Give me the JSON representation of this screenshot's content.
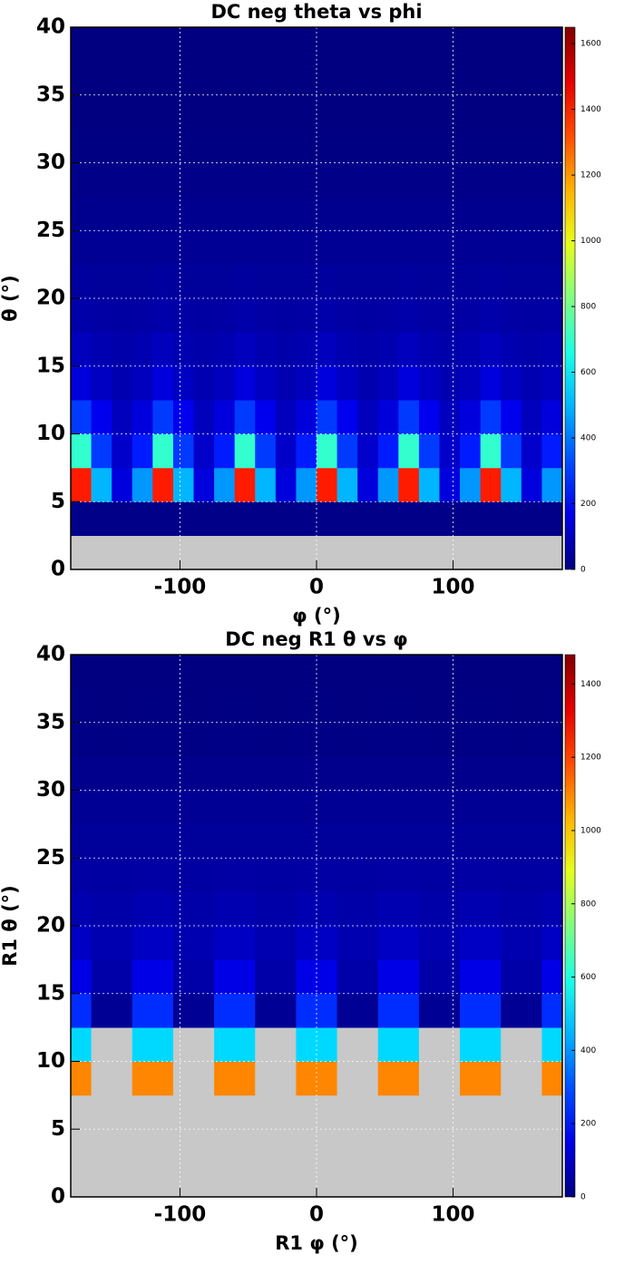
{
  "chart_data": [
    {
      "type": "heatmap",
      "title": "DC neg theta vs phi",
      "x_label": "φ (°)",
      "y_label": "θ (°)",
      "xlim": [
        -180,
        180
      ],
      "ylim": [
        0,
        40
      ],
      "zlim": [
        0,
        1650
      ],
      "xticks": [
        -100,
        0,
        100
      ],
      "yticks": [
        0,
        5,
        10,
        15,
        20,
        25,
        30,
        35,
        40
      ],
      "zticks": [
        0,
        200,
        400,
        600,
        800,
        1000,
        1200,
        1400,
        1600
      ],
      "xbins": [
        -180,
        -165,
        -150,
        -135,
        -120,
        -105,
        -90,
        -75,
        -60,
        -45,
        -30,
        -15,
        0,
        15,
        30,
        45,
        60,
        75,
        90,
        105,
        120,
        135,
        150,
        165,
        180
      ],
      "ybins": [
        0,
        2.5,
        5,
        7.5,
        10,
        12.5,
        15,
        17.5,
        20,
        22.5,
        25,
        27.5,
        30,
        32.5,
        35,
        37.5,
        40
      ],
      "grid": true,
      "empty_color": "#c8c8c8",
      "z": [
        [
          0,
          0,
          0,
          0,
          0,
          0,
          0,
          0,
          0,
          0,
          0,
          0,
          0,
          0,
          0,
          0,
          0,
          0,
          0,
          0,
          0,
          0,
          0,
          0
        ],
        [
          15,
          15,
          15,
          15,
          15,
          15,
          15,
          15,
          15,
          15,
          15,
          15,
          15,
          15,
          15,
          15,
          15,
          15,
          15,
          15,
          15,
          15,
          15,
          15
        ],
        [
          1400,
          500,
          150,
          450,
          1400,
          500,
          150,
          450,
          1400,
          500,
          150,
          450,
          1400,
          500,
          150,
          450,
          1400,
          500,
          150,
          450,
          1400,
          500,
          150,
          450
        ],
        [
          700,
          300,
          120,
          250,
          700,
          300,
          120,
          250,
          700,
          300,
          120,
          250,
          700,
          300,
          120,
          250,
          700,
          300,
          120,
          250,
          700,
          300,
          120,
          250
        ],
        [
          300,
          180,
          100,
          150,
          300,
          180,
          100,
          150,
          300,
          180,
          100,
          150,
          300,
          180,
          100,
          150,
          300,
          180,
          100,
          150,
          300,
          180,
          100,
          150
        ],
        [
          150,
          110,
          80,
          100,
          150,
          110,
          80,
          100,
          150,
          110,
          80,
          100,
          150,
          110,
          80,
          100,
          150,
          110,
          80,
          100,
          150,
          110,
          80,
          100
        ],
        [
          100,
          80,
          70,
          80,
          100,
          80,
          70,
          80,
          100,
          80,
          70,
          80,
          100,
          80,
          70,
          80,
          100,
          80,
          70,
          80,
          100,
          80,
          70,
          80
        ],
        [
          70,
          60,
          55,
          60,
          70,
          60,
          55,
          60,
          70,
          60,
          55,
          60,
          70,
          60,
          55,
          60,
          70,
          60,
          55,
          60,
          70,
          60,
          55,
          60
        ],
        [
          50,
          45,
          45,
          45,
          50,
          45,
          45,
          45,
          50,
          45,
          45,
          45,
          50,
          45,
          45,
          45,
          50,
          45,
          45,
          45,
          50,
          45,
          45,
          45
        ],
        [
          35,
          35,
          35,
          35,
          35,
          35,
          35,
          35,
          35,
          35,
          35,
          35,
          35,
          35,
          35,
          35,
          35,
          35,
          35,
          35,
          35,
          35,
          35,
          35
        ],
        [
          25,
          25,
          25,
          25,
          25,
          25,
          25,
          25,
          25,
          25,
          25,
          25,
          25,
          25,
          25,
          25,
          25,
          25,
          25,
          25,
          25,
          25,
          25,
          25
        ],
        [
          15,
          15,
          15,
          15,
          15,
          15,
          15,
          15,
          15,
          15,
          15,
          15,
          15,
          15,
          15,
          15,
          15,
          15,
          15,
          15,
          15,
          15,
          15,
          15
        ],
        [
          4,
          4,
          4,
          4,
          4,
          4,
          4,
          4,
          4,
          4,
          4,
          4,
          4,
          4,
          4,
          4,
          4,
          4,
          4,
          4,
          4,
          4,
          4,
          4
        ],
        [
          2,
          2,
          2,
          2,
          2,
          2,
          2,
          2,
          2,
          2,
          2,
          2,
          2,
          2,
          2,
          2,
          2,
          2,
          2,
          2,
          2,
          2,
          2,
          2
        ],
        [
          1,
          1,
          1,
          1,
          1,
          1,
          1,
          1,
          1,
          1,
          1,
          1,
          1,
          1,
          1,
          1,
          1,
          1,
          1,
          1,
          1,
          1,
          1,
          1
        ],
        [
          1,
          1,
          1,
          1,
          1,
          1,
          1,
          1,
          1,
          1,
          1,
          1,
          1,
          1,
          1,
          1,
          1,
          1,
          1,
          1,
          1,
          1,
          1,
          1
        ]
      ]
    },
    {
      "type": "heatmap",
      "title": "DC neg R1 θ vs φ",
      "x_label": "R1 φ (°)",
      "y_label": "R1 θ (°)",
      "xlim": [
        -180,
        180
      ],
      "ylim": [
        0,
        40
      ],
      "zlim": [
        0,
        1480
      ],
      "xticks": [
        -100,
        0,
        100
      ],
      "yticks": [
        0,
        5,
        10,
        15,
        20,
        25,
        30,
        35,
        40
      ],
      "zticks": [
        0,
        200,
        400,
        600,
        800,
        1000,
        1200,
        1400
      ],
      "xbins": [
        -180,
        -165,
        -150,
        -135,
        -120,
        -105,
        -90,
        -75,
        -60,
        -45,
        -30,
        -15,
        0,
        15,
        30,
        45,
        60,
        75,
        90,
        105,
        120,
        135,
        150,
        165,
        180
      ],
      "ybins": [
        0,
        2.5,
        5,
        7.5,
        10,
        12.5,
        15,
        17.5,
        20,
        22.5,
        25,
        27.5,
        30,
        32.5,
        35,
        37.5,
        40
      ],
      "grid": true,
      "empty_color": "#c8c8c8",
      "z": [
        [
          0,
          0,
          0,
          0,
          0,
          0,
          0,
          0,
          0,
          0,
          0,
          0,
          0,
          0,
          0,
          0,
          0,
          0,
          0,
          0,
          0,
          0,
          0,
          0
        ],
        [
          0,
          0,
          0,
          0,
          0,
          0,
          0,
          0,
          0,
          0,
          0,
          0,
          0,
          0,
          0,
          0,
          0,
          0,
          0,
          0,
          0,
          0,
          0,
          0
        ],
        [
          0,
          0,
          0,
          0,
          0,
          0,
          0,
          0,
          0,
          0,
          0,
          0,
          0,
          0,
          0,
          0,
          0,
          0,
          0,
          0,
          0,
          0,
          0,
          0
        ],
        [
          1100,
          0,
          0,
          1100,
          1100,
          0,
          0,
          1100,
          1100,
          0,
          0,
          1100,
          1100,
          0,
          0,
          1100,
          1100,
          0,
          0,
          1100,
          1100,
          0,
          0,
          1100
        ],
        [
          500,
          0,
          0,
          500,
          500,
          0,
          0,
          500,
          500,
          0,
          0,
          500,
          500,
          0,
          0,
          500,
          500,
          0,
          0,
          500,
          500,
          0,
          0,
          500
        ],
        [
          250,
          30,
          30,
          250,
          250,
          30,
          30,
          250,
          250,
          30,
          30,
          250,
          250,
          30,
          30,
          250,
          250,
          30,
          30,
          250,
          250,
          30,
          30,
          250
        ],
        [
          150,
          60,
          60,
          150,
          150,
          60,
          60,
          150,
          150,
          60,
          60,
          150,
          150,
          60,
          60,
          150,
          150,
          60,
          60,
          150,
          150,
          60,
          60,
          150
        ],
        [
          100,
          70,
          70,
          100,
          100,
          70,
          70,
          100,
          100,
          70,
          70,
          100,
          100,
          70,
          70,
          100,
          100,
          70,
          70,
          100,
          100,
          70,
          70,
          100
        ],
        [
          70,
          60,
          60,
          70,
          70,
          60,
          60,
          70,
          70,
          60,
          60,
          70,
          70,
          60,
          60,
          70,
          70,
          60,
          60,
          70,
          70,
          60,
          60,
          70
        ],
        [
          55,
          50,
          50,
          55,
          55,
          50,
          50,
          55,
          55,
          50,
          50,
          55,
          55,
          50,
          50,
          55,
          55,
          50,
          50,
          55,
          55,
          50,
          50,
          55
        ],
        [
          40,
          40,
          40,
          40,
          40,
          40,
          40,
          40,
          40,
          40,
          40,
          40,
          40,
          40,
          40,
          40,
          40,
          40,
          40,
          40,
          40,
          40,
          40,
          40
        ],
        [
          30,
          30,
          30,
          30,
          30,
          30,
          30,
          30,
          30,
          30,
          30,
          30,
          30,
          30,
          30,
          30,
          30,
          30,
          30,
          30,
          30,
          30,
          30,
          30
        ],
        [
          20,
          18,
          18,
          20,
          20,
          18,
          18,
          20,
          20,
          18,
          18,
          20,
          20,
          18,
          18,
          20,
          20,
          18,
          18,
          20,
          20,
          18,
          18,
          20
        ],
        [
          10,
          8,
          8,
          10,
          10,
          8,
          8,
          10,
          10,
          8,
          8,
          10,
          10,
          8,
          8,
          10,
          10,
          8,
          8,
          10,
          10,
          8,
          8,
          10
        ],
        [
          3,
          2,
          2,
          3,
          3,
          2,
          2,
          3,
          3,
          2,
          2,
          3,
          3,
          2,
          2,
          3,
          3,
          2,
          2,
          3,
          3,
          2,
          2,
          3
        ],
        [
          1,
          1,
          1,
          1,
          1,
          1,
          1,
          1,
          1,
          1,
          1,
          1,
          1,
          1,
          1,
          1,
          1,
          1,
          1,
          1,
          1,
          1,
          1,
          1
        ]
      ]
    }
  ]
}
